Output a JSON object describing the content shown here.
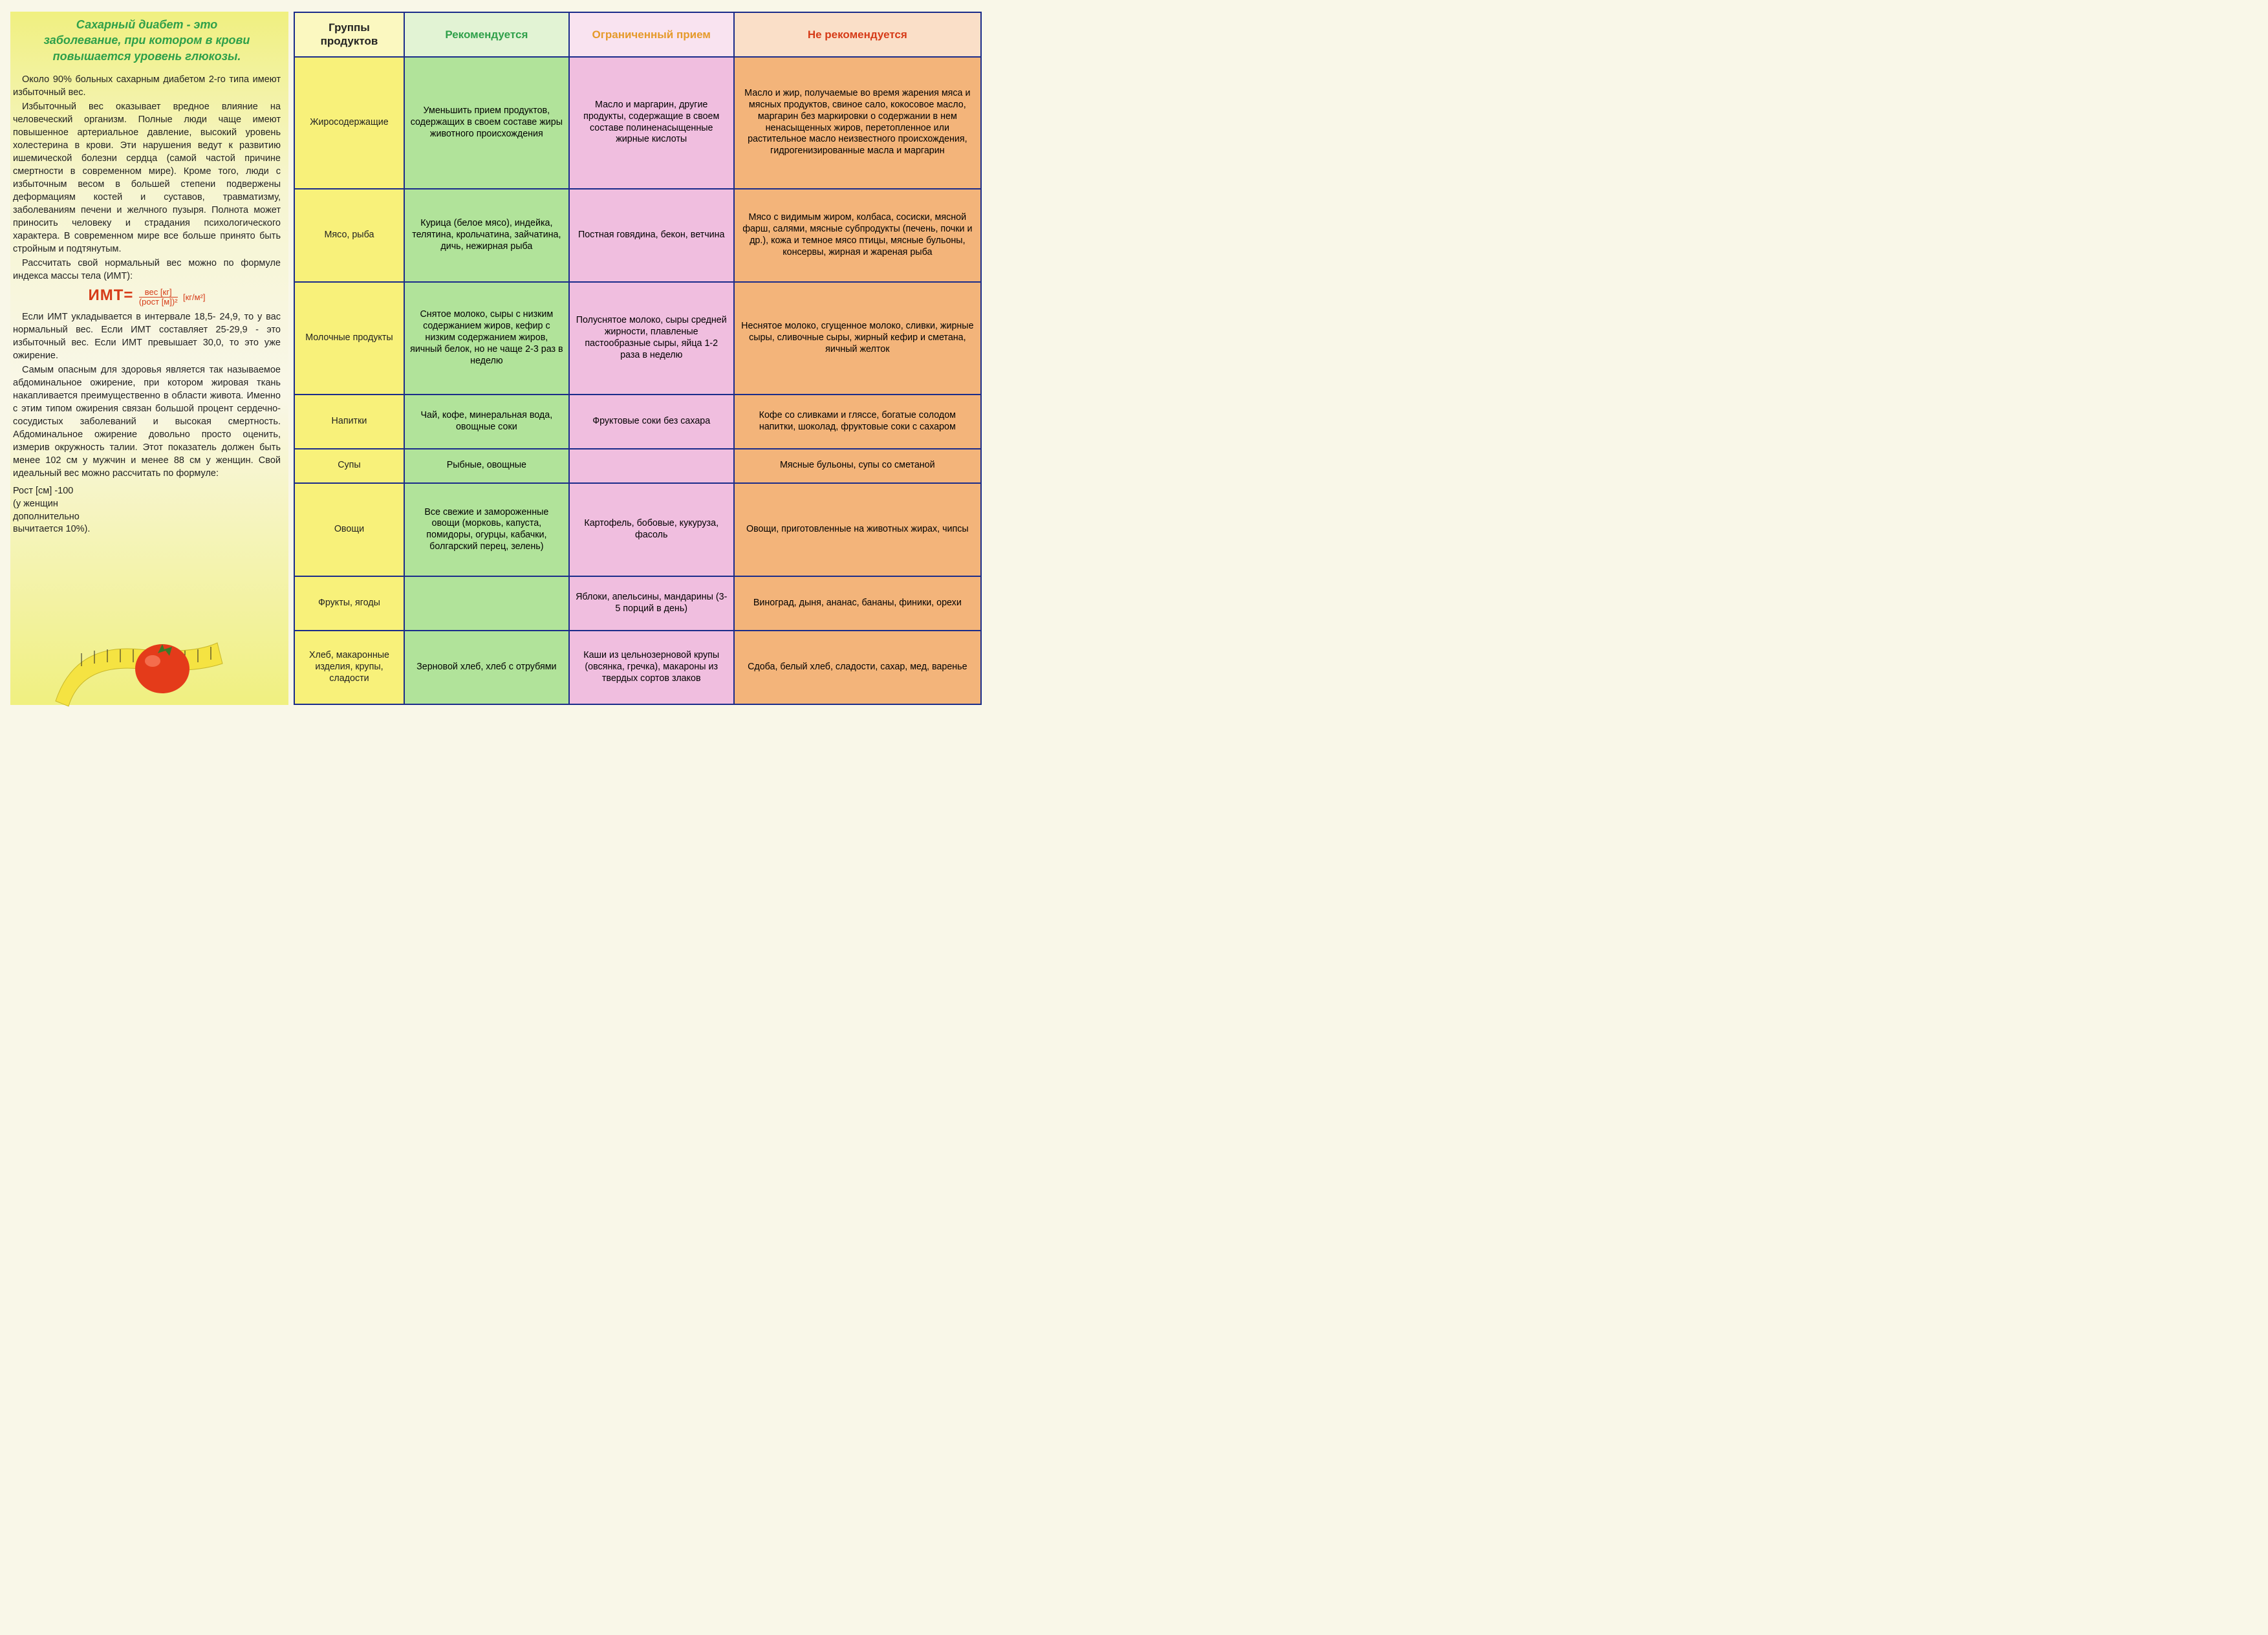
{
  "title_color": "#2fa04a",
  "title_lines": [
    "Сахарный диабет - это",
    "заболевание, при котором в крови",
    "повышается уровень глюкозы."
  ],
  "paragraphs": [
    "Около 90% больных сахарным диабетом 2-го типа имеют избыточный вес.",
    "Избыточный вес оказывает вредное влияние на человеческий организм. Полные люди чаще имеют повышенное артериальное давление, высокий уровень холестерина в крови. Эти нарушения ведут к развитию ишемической болезни сердца (самой частой причине смертности в современном мире). Кроме того, люди с избыточным весом в большей степени подвержены деформациям костей и суставов, травматизму, заболеваниям печени и желчного пузыря. Полнота может приносить человеку и страдания психологического характера. В современном мире все больше принято быть стройным и подтянутым.",
    "Рассчитать свой нормальный вес можно по формуле индекса массы тела (ИМТ):"
  ],
  "formula": {
    "label": "ИМТ=",
    "numerator": "вес [кг]",
    "denominator": "(рост [м])²",
    "unit": "[кг/м²]",
    "color": "#d63b18"
  },
  "paragraphs2": [
    "Если ИМТ укладывается в интервале 18,5- 24,9, то у вас нормальный вес. Если ИМТ составляет 25-29,9 - это избыточный вес. Если ИМТ превышает 30,0, то это уже ожирение.",
    "Самым опасным для здоровья является так называемое абдоминальное ожирение, при котором жировая ткань накапливается преимущественно в области живота. Именно с этим типом ожирения связан большой процент сердечно-сосудистых заболеваний и высокая смертность. Абдоминальное ожирение довольно просто оценить, измерив окружность талии. Этот показатель должен быть менее 102 см у мужчин и менее 88 см у женщин. Свой идеальный вес можно рассчитать по формуле:"
  ],
  "ideal_lines": [
    "Рост [см] -100",
    "(у женщин",
    "дополнительно",
    "вычитается 10%)."
  ],
  "table": {
    "border_color": "#1a2c8a",
    "headers": {
      "group": {
        "text": "Группы продуктов",
        "color": "#222222"
      },
      "rec": {
        "text": "Рекомендуется",
        "color": "#2fa04a"
      },
      "lim": {
        "text": "Ограниченный прием",
        "color": "#e59a2a"
      },
      "not": {
        "text": "Не рекомендуется",
        "color": "#d63b18"
      }
    },
    "col_colors": {
      "group": "#f8f17a",
      "rec": "#b1e39a",
      "lim": "#f0bedf",
      "not": "#f3b47a"
    },
    "rows": [
      {
        "group": "Жиросодержащие",
        "rec": "Уменьшить прием продуктов, содержащих в своем составе жиры животного происхождения",
        "lim": "Масло и маргарин, другие продукты, содержащие в своем составе полиненасыщенные жирные кислоты",
        "not": "Масло и жир, получаемые во время жарения мяса и мясных продуктов, свиное сало, кокосовое масло, маргарин без маркировки о содержании в нем ненасыщенных жиров, перетопленное или растительное масло неизвестного происхождения, гидрогенизированные масла и маргарин"
      },
      {
        "group": "Мясо, рыба",
        "rec": "Курица (белое мясо), индейка, телятина, крольчатина, зайчатина, дичь, нежирная рыба",
        "lim": "Постная говядина, бекон, ветчина",
        "not": "Мясо с видимым жиром, колбаса, сосиски, мясной фарш, салями, мясные субпродукты (печень, почки и др.), кожа и темное мясо птицы, мясные бульоны, консервы, жирная и жареная рыба"
      },
      {
        "group": "Молочные продукты",
        "rec": "Снятое молоко, сыры с низким содержанием жиров, кефир с низким содержанием жиров, яичный белок, но не чаще 2-3 раз в неделю",
        "lim": "Полуснятое молоко, сыры средней жирности, плавленые пастообразные сыры, яйца 1-2 раза в неделю",
        "not": "Неснятое молоко, сгущенное молоко, сливки, жирные сыры, сливочные сыры, жирный кефир и сметана, яичный желток"
      },
      {
        "group": "Напитки",
        "rec": "Чай, кофе, минеральная вода, овощные соки",
        "lim": "Фруктовые соки без сахара",
        "not": "Кофе со сливками и гляссе, богатые солодом напитки, шоколад, фруктовые соки с сахаром"
      },
      {
        "group": "Супы",
        "rec": "Рыбные, овощные",
        "lim": "",
        "not": "Мясные бульоны, супы со сметаной"
      },
      {
        "group": "Овощи",
        "rec": "Все свежие и замороженные овощи (морковь, капуста, помидоры, огурцы, кабачки, болгарский перец, зелень)",
        "lim": "Картофель, бобовые, кукуруза, фасоль",
        "not": "Овощи, приготовленные на животных жирах, чипсы"
      },
      {
        "group": "Фрукты, ягоды",
        "rec": "",
        "lim": "Яблоки, апельсины, мандарины (3-5 порций в день)",
        "not": "Виноград, дыня, ананас, бананы, финики, орехи"
      },
      {
        "group": "Хлеб, макаронные изделия, крупы, сладости",
        "rec": "Зерновой хлеб, хлеб с отрубями",
        "lim": "Каши из цельнозерновой крупы (овсянка, гречка), макароны из твердых сортов злаков",
        "not": "Сдоба, белый хлеб, сладости, сахар, мед, варенье"
      }
    ]
  }
}
